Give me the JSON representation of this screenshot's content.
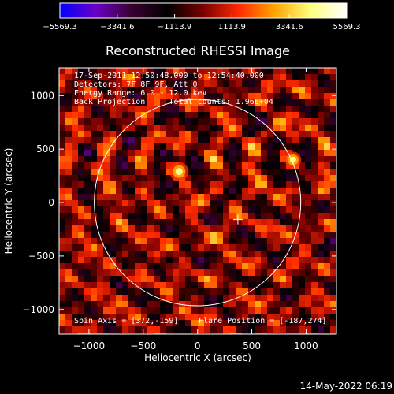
{
  "chart_data": {
    "type": "heatmap",
    "title": "Reconstructed RHESSI Image",
    "xlabel": "Heliocentric X (arcsec)",
    "ylabel": "Heliocentric Y (arcsec)",
    "xlim": [
      -1275,
      1280
    ],
    "ylim": [
      -1230,
      1260
    ],
    "xticks": [
      -1000,
      -500,
      0,
      500,
      1000
    ],
    "xtick_labels": [
      "−1000",
      "−500",
      "0",
      "500",
      "1000"
    ],
    "yticks": [
      -1000,
      -500,
      0,
      500,
      1000
    ],
    "ytick_labels": [
      "−1000",
      "−500",
      "0",
      "500",
      "1000"
    ],
    "colorbar": {
      "range": [
        -5569.3,
        5569.3
      ],
      "ticks": [
        -5569.3,
        -3341.6,
        -1113.9,
        1113.9,
        3341.6,
        5569.3
      ],
      "tick_labels": [
        "−5569.3",
        "−3341.6",
        "−1113.9",
        "1113.9",
        "3341.6",
        "5569.3"
      ],
      "colors": [
        "#0000ff",
        "#6a00c8",
        "#3a0030",
        "#000000",
        "#7a0000",
        "#ff2a00",
        "#ffa500",
        "#ffff80",
        "#ffffff"
      ]
    },
    "sources": [
      {
        "x": -170,
        "y": 290,
        "intensity": 5569.3
      },
      {
        "x": 880,
        "y": 400,
        "intensity": 4800
      }
    ],
    "solar_limb_radius": 958,
    "disk_center": [
      0,
      0
    ],
    "flare_position": [
      -187,
      274
    ],
    "spin_axis": [
      372,
      -159
    ],
    "annotations": [
      "17-Sep-2011 12:50:48.000 to 12:54:40.000",
      "Detectors: 7F 8F 9F, Att 0",
      "Energy Range: 6.0 - 12.0 keV",
      "Back Projection     Total counts: 1.96E+04"
    ],
    "spin_axis_label": "Spin Axis = [372,-159]",
    "flare_position_label": "Flare Position = [-187,274]",
    "timestamp": "14-May-2022 06:19"
  }
}
